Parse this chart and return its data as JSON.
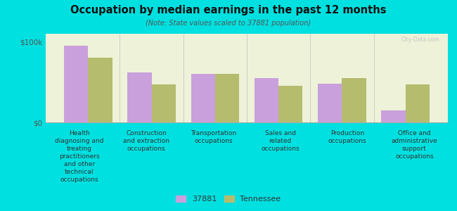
{
  "title": "Occupation by median earnings in the past 12 months",
  "subtitle": "(Note: State values scaled to 37881 population)",
  "background_color": "#00e0e0",
  "plot_bg_color": "#eef2d8",
  "categories": [
    "Health\ndiagnosing and\ntreating\npractitioners\nand other\ntechnical\noccupations",
    "Construction\nand extraction\noccupations",
    "Transportation\noccupations",
    "Sales and\nrelated\noccupations",
    "Production\noccupations",
    "Office and\nadministrative\nsupport\noccupations"
  ],
  "series_37881": [
    95000,
    62000,
    60000,
    55000,
    48000,
    15000
  ],
  "series_tennessee": [
    80000,
    47000,
    60000,
    45000,
    55000,
    47000
  ],
  "color_37881": "#c9a0dc",
  "color_tennessee": "#b5bc6e",
  "yticks": [
    0,
    100000
  ],
  "ytick_labels": [
    "$0",
    "$100k"
  ],
  "legend_37881": "37881",
  "legend_tennessee": "Tennessee",
  "bar_width": 0.38,
  "ylim": [
    0,
    110000
  ],
  "watermark": "City-Data.com"
}
